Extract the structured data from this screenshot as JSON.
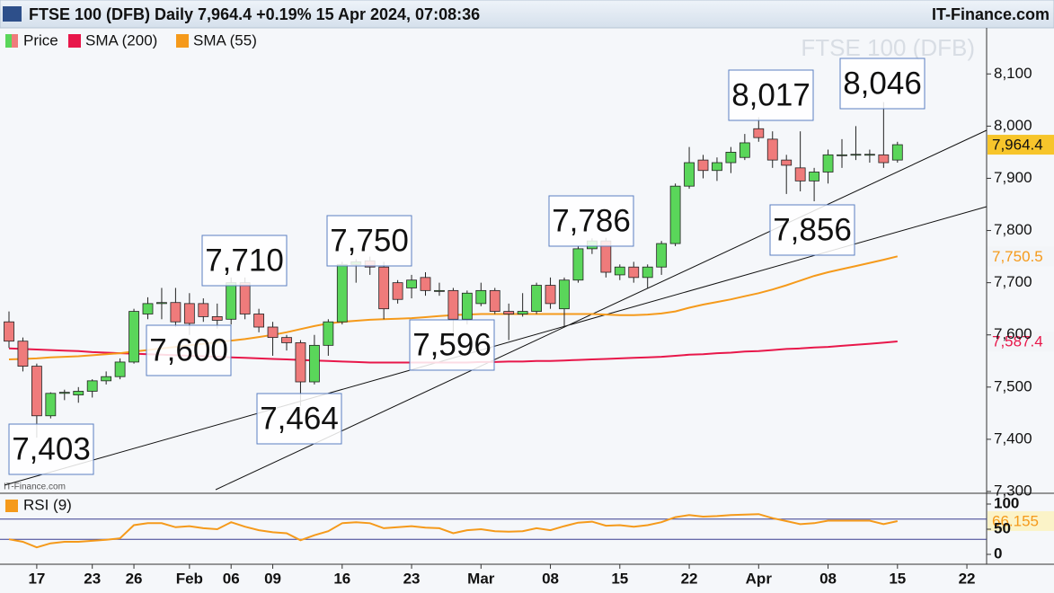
{
  "header": {
    "title": "FTSE 100 (DFB) Daily 7,964.4 +0.19% 15 Apr 2024, 07:08:36",
    "source": "IT-Finance.com"
  },
  "chart_data": [
    {
      "type": "candlestick",
      "watermark": "FTSE 100 (DFB)",
      "credit": "IT-Finance.com",
      "categories": [
        null,
        null,
        "17",
        null,
        null,
        null,
        "23",
        null,
        null,
        "26",
        null,
        null,
        null,
        "Feb",
        null,
        null,
        "06",
        null,
        null,
        "09",
        null,
        null,
        null,
        null,
        "16",
        null,
        null,
        null,
        null,
        "23",
        null,
        null,
        null,
        null,
        "Mar",
        null,
        null,
        null,
        null,
        "08",
        null,
        null,
        null,
        null,
        "15",
        null,
        null,
        null,
        null,
        "22",
        null,
        null,
        null,
        null,
        "Apr",
        null,
        null,
        null,
        null,
        "08",
        null,
        null,
        null,
        null,
        "15",
        null,
        null,
        null,
        null,
        "22"
      ],
      "ylim": [
        7300,
        8190
      ],
      "yticks": [
        {
          "value": 7300,
          "label": "7,300"
        },
        {
          "value": 7400,
          "label": "7,400"
        },
        {
          "value": 7500,
          "label": "7,500"
        },
        {
          "value": 7600,
          "label": "7,600"
        },
        {
          "value": 7700,
          "label": "7,700"
        },
        {
          "value": 7800,
          "label": "7,800"
        },
        {
          "value": 7900,
          "label": "7,900"
        },
        {
          "value": 8000,
          "label": "8,000"
        },
        {
          "value": 8100,
          "label": "8,100"
        }
      ],
      "series": [
        {
          "name": "Price",
          "type": "candlestick",
          "up_color": "#5ad65a",
          "down_color": "#ef7b7b",
          "open": [
            7625,
            7588,
            7540,
            7445,
            7488,
            7485,
            7492,
            7512,
            7520,
            7548,
            7640,
            7660,
            7662,
            7660,
            7660,
            7635,
            7630,
            7700,
            7640,
            7615,
            7595,
            7585,
            7510,
            7580,
            7625,
            7735,
            7742,
            7730,
            7700,
            7690,
            7710,
            7685,
            7685,
            7630,
            7660,
            7685,
            7645,
            7640,
            7645,
            7695,
            7650,
            7705,
            7765,
            7780,
            7715,
            7730,
            7710,
            7730,
            7775,
            7885,
            7935,
            7915,
            7930,
            7940,
            7995,
            7975,
            7935,
            7920,
            7895,
            7912,
            7945,
            7945,
            7945,
            7945,
            7935,
            null,
            null,
            null,
            null,
            null
          ],
          "high": [
            7645,
            7595,
            7545,
            7490,
            7495,
            7500,
            7515,
            7530,
            7555,
            7650,
            7672,
            7690,
            7690,
            7680,
            7670,
            7660,
            7710,
            7710,
            7650,
            7625,
            7600,
            7590,
            7600,
            7630,
            7740,
            7745,
            7750,
            7740,
            7705,
            7715,
            7720,
            7700,
            7690,
            7685,
            7700,
            7690,
            7660,
            7680,
            7700,
            7710,
            7710,
            7770,
            7785,
            7786,
            7735,
            7740,
            7735,
            7780,
            7890,
            7960,
            7945,
            7940,
            7960,
            7985,
            8017,
            7990,
            7945,
            7990,
            7920,
            7955,
            7975,
            8000,
            7955,
            8046,
            7970,
            null,
            null,
            null,
            null,
            null
          ],
          "low": [
            7575,
            7530,
            7403,
            7440,
            7475,
            7470,
            7480,
            7505,
            7515,
            7545,
            7630,
            7630,
            7615,
            7600,
            7625,
            7612,
            7620,
            7630,
            7605,
            7560,
            7570,
            7464,
            7505,
            7560,
            7620,
            7700,
            7715,
            7630,
            7660,
            7670,
            7675,
            7675,
            7596,
            7620,
            7655,
            7640,
            7590,
            7635,
            7640,
            7650,
            7615,
            7700,
            7755,
            7710,
            7705,
            7700,
            7690,
            7715,
            7770,
            7880,
            7900,
            7895,
            7910,
            7935,
            7970,
            7920,
            7870,
            7875,
            7856,
            7890,
            7920,
            7935,
            7930,
            7920,
            7930,
            null,
            null,
            null,
            null,
            null
          ],
          "close": [
            7588,
            7540,
            7445,
            7488,
            7490,
            7492,
            7512,
            7520,
            7548,
            7645,
            7660,
            7662,
            7625,
            7622,
            7635,
            7628,
            7700,
            7640,
            7615,
            7595,
            7585,
            7510,
            7580,
            7625,
            7735,
            7740,
            7730,
            7650,
            7668,
            7705,
            7685,
            7685,
            7630,
            7680,
            7685,
            7645,
            7640,
            7645,
            7695,
            7660,
            7705,
            7765,
            7780,
            7720,
            7730,
            7710,
            7730,
            7775,
            7885,
            7930,
            7915,
            7930,
            7950,
            7968,
            7978,
            7935,
            7925,
            7895,
            7912,
            7945,
            7945,
            7946,
            7946,
            7930,
            7964.4,
            null,
            null,
            null,
            null,
            null
          ],
          "last_value": {
            "value": 7964.4,
            "label": "7,964.4"
          }
        },
        {
          "name": "SMA (200)",
          "type": "line",
          "color": "#e8174a",
          "values": [
            7574,
            7573,
            7572,
            7571,
            7570,
            7569,
            7567,
            7566,
            7565,
            7564,
            7563,
            7562,
            7561,
            7560,
            7559,
            7558,
            7557,
            7556,
            7555,
            7554,
            7553,
            7552,
            7551,
            7550,
            7549,
            7548,
            7547,
            7547,
            7547,
            7547,
            7547,
            7547,
            7547,
            7547,
            7548,
            7548,
            7549,
            7549,
            7550,
            7550,
            7551,
            7552,
            7553,
            7554,
            7555,
            7556,
            7557,
            7558,
            7560,
            7562,
            7563,
            7565,
            7566,
            7568,
            7569,
            7571,
            7573,
            7574,
            7576,
            7577,
            7579,
            7581,
            7583,
            7585,
            7587.4,
            null,
            null,
            null,
            null,
            null
          ],
          "last_value": {
            "value": 7587.4,
            "label": "7,587.4"
          }
        },
        {
          "name": "SMA (55)",
          "type": "line",
          "color": "#f59a1b",
          "values": [
            7553,
            7554,
            7555,
            7557,
            7558,
            7559,
            7561,
            7563,
            7565,
            7568,
            7571,
            7574,
            7577,
            7580,
            7583,
            7586,
            7589,
            7592,
            7596,
            7600,
            7605,
            7611,
            7617,
            7622,
            7625,
            7627,
            7629,
            7630,
            7631,
            7632,
            7634,
            7636,
            7638,
            7639,
            7640,
            7640,
            7640,
            7640,
            7640,
            7640,
            7640,
            7640,
            7640,
            7639,
            7638,
            7638,
            7639,
            7641,
            7645,
            7652,
            7658,
            7663,
            7668,
            7674,
            7680,
            7687,
            7695,
            7704,
            7713,
            7720,
            7726,
            7732,
            7738,
            7744,
            7750.5,
            null,
            null,
            null,
            null,
            null
          ],
          "last_value": {
            "value": 7750.5,
            "label": "7,750.5"
          }
        }
      ],
      "annotations": [
        "7,403",
        "7,600",
        "7,710",
        "7,750",
        "7,464",
        "7,596",
        "7,786",
        "7,856",
        "8,017",
        "8,046"
      ]
    },
    {
      "type": "line",
      "ylim": [
        0,
        100
      ],
      "yticks": [
        0,
        50,
        100
      ],
      "levels": [
        30,
        70
      ],
      "series": [
        {
          "name": "RSI (9)",
          "color": "#f59a1b",
          "values": [
            30,
            25,
            14,
            22,
            25,
            25,
            27,
            29,
            32,
            58,
            62,
            62,
            54,
            56,
            52,
            50,
            64,
            55,
            48,
            44,
            42,
            28,
            38,
            46,
            62,
            64,
            62,
            52,
            54,
            56,
            53,
            52,
            42,
            48,
            50,
            46,
            45,
            46,
            52,
            48,
            56,
            63,
            65,
            57,
            58,
            55,
            58,
            64,
            74,
            78,
            75,
            76,
            78,
            79,
            80,
            72,
            66,
            60,
            62,
            67,
            67,
            67,
            67,
            60,
            66.155,
            null,
            null,
            null,
            null,
            null
          ],
          "last_value": {
            "value": 66.155,
            "label": "66.155"
          }
        }
      ]
    }
  ]
}
